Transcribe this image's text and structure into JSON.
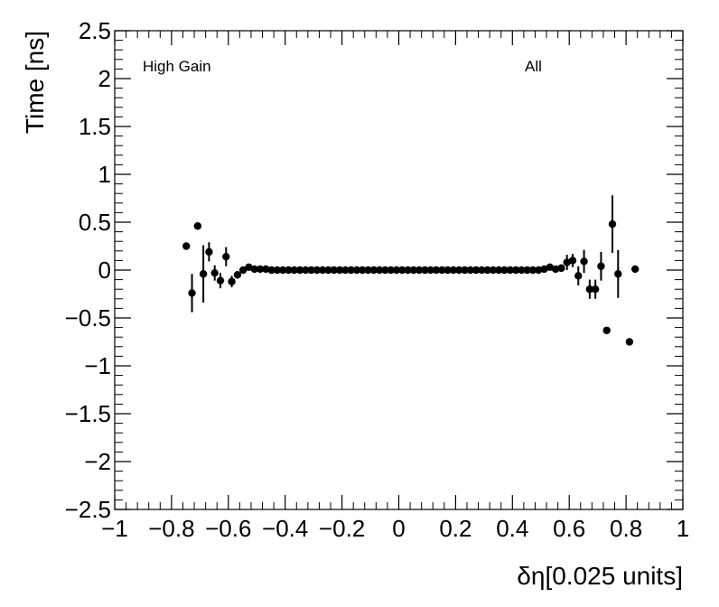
{
  "chart_data": {
    "type": "scatter",
    "xlabel": "δη[0.025 units]",
    "ylabel": "Time [ns]",
    "xlim": [
      -1,
      1
    ],
    "ylim": [
      -2.5,
      2.5
    ],
    "xticks": [
      -1,
      -0.8,
      -0.6,
      -0.4,
      -0.2,
      0,
      0.2,
      0.4,
      0.6,
      0.8,
      1
    ],
    "xtick_labels": [
      "−1",
      "−0.8",
      "−0.6",
      "−0.4",
      "−0.2",
      "0",
      "0.2",
      "0.4",
      "0.6",
      "0.8",
      "1"
    ],
    "yticks": [
      -2.5,
      -2,
      -1.5,
      -1,
      -0.5,
      0,
      0.5,
      1,
      1.5,
      2,
      2.5
    ],
    "ytick_labels": [
      "−2.5",
      "−2",
      "−1.5",
      "−1",
      "−0.5",
      "0",
      "0.5",
      "1",
      "1.5",
      "2",
      "2.5"
    ],
    "grid": false,
    "annotations": [
      "High Gain",
      "All"
    ],
    "marker_color": "#000000",
    "points": [
      {
        "x": -0.748,
        "y": 0.25,
        "err": 0.0
      },
      {
        "x": -0.728,
        "y": -0.24,
        "err": 0.2
      },
      {
        "x": -0.708,
        "y": 0.46,
        "err": 0.0
      },
      {
        "x": -0.688,
        "y": -0.04,
        "err": 0.3
      },
      {
        "x": -0.668,
        "y": 0.19,
        "err": 0.1
      },
      {
        "x": -0.648,
        "y": -0.03,
        "err": 0.08
      },
      {
        "x": -0.628,
        "y": -0.11,
        "err": 0.08
      },
      {
        "x": -0.608,
        "y": 0.14,
        "err": 0.1
      },
      {
        "x": -0.588,
        "y": -0.12,
        "err": 0.06
      },
      {
        "x": -0.568,
        "y": -0.05,
        "err": 0.04
      },
      {
        "x": -0.548,
        "y": 0.0,
        "err": 0.02
      },
      {
        "x": -0.528,
        "y": 0.03,
        "err": 0.0
      },
      {
        "x": -0.508,
        "y": 0.01,
        "err": 0.0
      },
      {
        "x": -0.488,
        "y": 0.01,
        "err": 0.0
      },
      {
        "x": -0.468,
        "y": 0.01,
        "err": 0.0
      },
      {
        "x": -0.448,
        "y": 0.0,
        "err": 0.0
      },
      {
        "x": -0.428,
        "y": 0.0,
        "err": 0.0
      },
      {
        "x": -0.408,
        "y": 0.0,
        "err": 0.0
      },
      {
        "x": -0.388,
        "y": 0.0,
        "err": 0.0
      },
      {
        "x": -0.368,
        "y": 0.0,
        "err": 0.0
      },
      {
        "x": -0.348,
        "y": 0.0,
        "err": 0.0
      },
      {
        "x": -0.328,
        "y": 0.0,
        "err": 0.0
      },
      {
        "x": -0.308,
        "y": 0.0,
        "err": 0.0
      },
      {
        "x": -0.288,
        "y": 0.0,
        "err": 0.0
      },
      {
        "x": -0.268,
        "y": 0.0,
        "err": 0.0
      },
      {
        "x": -0.248,
        "y": 0.0,
        "err": 0.0
      },
      {
        "x": -0.228,
        "y": 0.0,
        "err": 0.0
      },
      {
        "x": -0.208,
        "y": 0.0,
        "err": 0.0
      },
      {
        "x": -0.188,
        "y": 0.0,
        "err": 0.0
      },
      {
        "x": -0.168,
        "y": 0.0,
        "err": 0.0
      },
      {
        "x": -0.148,
        "y": 0.0,
        "err": 0.0
      },
      {
        "x": -0.128,
        "y": 0.0,
        "err": 0.0
      },
      {
        "x": -0.108,
        "y": 0.0,
        "err": 0.0
      },
      {
        "x": -0.088,
        "y": 0.0,
        "err": 0.0
      },
      {
        "x": -0.068,
        "y": 0.0,
        "err": 0.0
      },
      {
        "x": -0.048,
        "y": 0.0,
        "err": 0.0
      },
      {
        "x": -0.028,
        "y": 0.0,
        "err": 0.0
      },
      {
        "x": -0.008,
        "y": 0.0,
        "err": 0.0
      },
      {
        "x": 0.012,
        "y": 0.0,
        "err": 0.0
      },
      {
        "x": 0.032,
        "y": 0.0,
        "err": 0.0
      },
      {
        "x": 0.052,
        "y": 0.0,
        "err": 0.0
      },
      {
        "x": 0.072,
        "y": 0.0,
        "err": 0.0
      },
      {
        "x": 0.092,
        "y": 0.0,
        "err": 0.0
      },
      {
        "x": 0.112,
        "y": 0.0,
        "err": 0.0
      },
      {
        "x": 0.132,
        "y": 0.0,
        "err": 0.0
      },
      {
        "x": 0.152,
        "y": 0.0,
        "err": 0.0
      },
      {
        "x": 0.172,
        "y": 0.0,
        "err": 0.0
      },
      {
        "x": 0.192,
        "y": 0.0,
        "err": 0.0
      },
      {
        "x": 0.212,
        "y": 0.0,
        "err": 0.0
      },
      {
        "x": 0.232,
        "y": 0.0,
        "err": 0.0
      },
      {
        "x": 0.252,
        "y": 0.0,
        "err": 0.0
      },
      {
        "x": 0.272,
        "y": 0.0,
        "err": 0.0
      },
      {
        "x": 0.292,
        "y": 0.0,
        "err": 0.0
      },
      {
        "x": 0.312,
        "y": 0.0,
        "err": 0.0
      },
      {
        "x": 0.332,
        "y": 0.0,
        "err": 0.0
      },
      {
        "x": 0.352,
        "y": 0.0,
        "err": 0.0
      },
      {
        "x": 0.372,
        "y": 0.0,
        "err": 0.0
      },
      {
        "x": 0.392,
        "y": 0.0,
        "err": 0.0
      },
      {
        "x": 0.412,
        "y": 0.0,
        "err": 0.0
      },
      {
        "x": 0.432,
        "y": 0.0,
        "err": 0.0
      },
      {
        "x": 0.452,
        "y": 0.0,
        "err": 0.0
      },
      {
        "x": 0.472,
        "y": 0.0,
        "err": 0.0
      },
      {
        "x": 0.492,
        "y": 0.0,
        "err": 0.0
      },
      {
        "x": 0.512,
        "y": 0.01,
        "err": 0.0
      },
      {
        "x": 0.532,
        "y": 0.03,
        "err": 0.02
      },
      {
        "x": 0.552,
        "y": 0.01,
        "err": 0.02
      },
      {
        "x": 0.572,
        "y": 0.02,
        "err": 0.04
      },
      {
        "x": 0.592,
        "y": 0.08,
        "err": 0.08
      },
      {
        "x": 0.612,
        "y": 0.1,
        "err": 0.07
      },
      {
        "x": 0.632,
        "y": -0.06,
        "err": 0.1
      },
      {
        "x": 0.652,
        "y": 0.09,
        "err": 0.12
      },
      {
        "x": 0.672,
        "y": -0.2,
        "err": 0.1
      },
      {
        "x": 0.692,
        "y": -0.2,
        "err": 0.1
      },
      {
        "x": 0.712,
        "y": 0.04,
        "err": 0.15
      },
      {
        "x": 0.732,
        "y": -0.63,
        "err": 0.0
      },
      {
        "x": 0.752,
        "y": 0.48,
        "err": 0.3
      },
      {
        "x": 0.772,
        "y": -0.04,
        "err": 0.25
      },
      {
        "x": 0.812,
        "y": -0.75,
        "err": 0.0
      },
      {
        "x": 0.832,
        "y": 0.01,
        "err": 0.0
      }
    ]
  }
}
